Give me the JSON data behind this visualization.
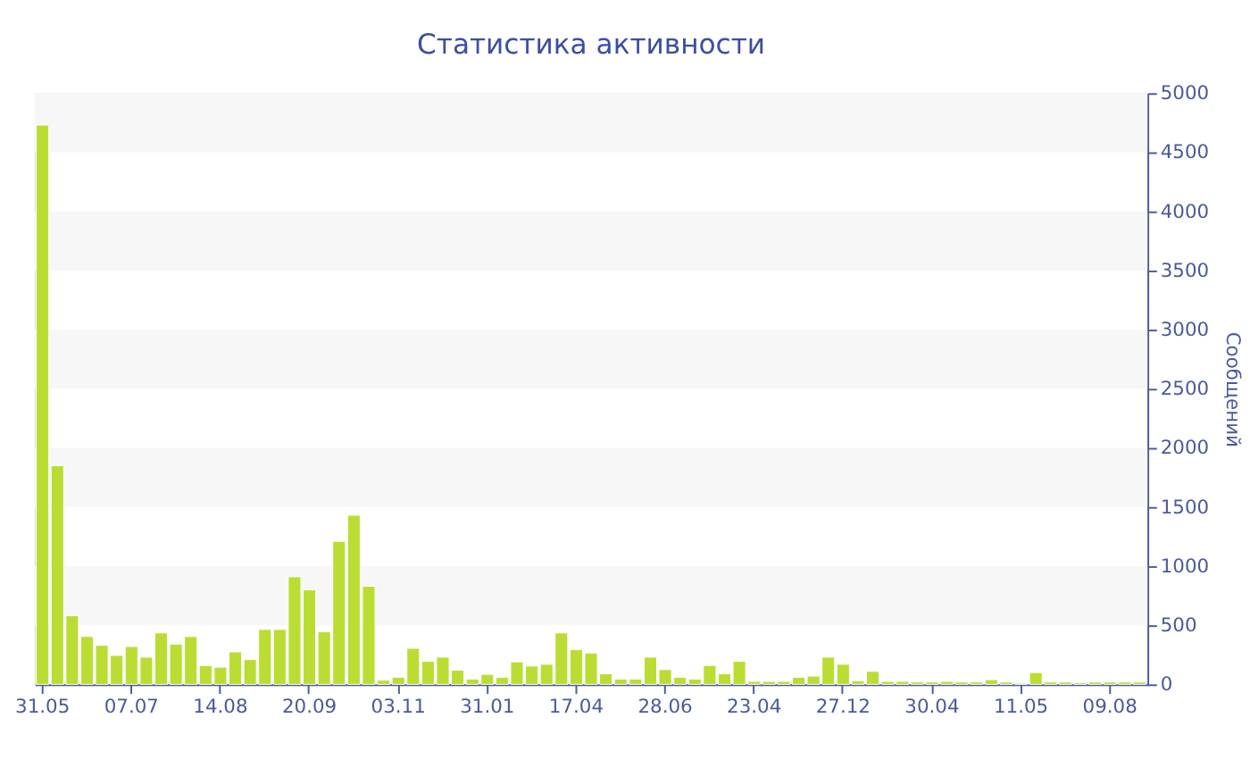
{
  "chart_data": {
    "type": "bar",
    "title": "Статистика активности",
    "ylabel": "Сообщений",
    "categories": [
      "31.05",
      null,
      null,
      null,
      null,
      null,
      "07.07",
      null,
      null,
      null,
      null,
      null,
      "14.08",
      null,
      null,
      null,
      null,
      null,
      "20.09",
      null,
      null,
      null,
      null,
      null,
      "03.11",
      null,
      null,
      null,
      null,
      null,
      "31.01",
      null,
      null,
      null,
      null,
      null,
      "17.04",
      null,
      null,
      null,
      null,
      null,
      "28.06",
      null,
      null,
      null,
      null,
      null,
      "23.04",
      null,
      null,
      null,
      null,
      null,
      "27.12",
      null,
      null,
      null,
      null,
      null,
      "30.04",
      null,
      null,
      null,
      null,
      null,
      "11.05",
      null,
      null,
      null,
      null,
      null,
      "09.08",
      null,
      null
    ],
    "values": [
      4730,
      1850,
      580,
      405,
      330,
      245,
      320,
      230,
      435,
      340,
      405,
      160,
      145,
      275,
      210,
      465,
      465,
      910,
      800,
      445,
      1210,
      1430,
      830,
      35,
      60,
      305,
      195,
      230,
      120,
      45,
      85,
      60,
      190,
      155,
      170,
      435,
      295,
      265,
      90,
      45,
      45,
      230,
      125,
      60,
      45,
      160,
      90,
      195,
      25,
      25,
      25,
      60,
      70,
      230,
      170,
      30,
      110,
      25,
      25,
      20,
      20,
      25,
      20,
      20,
      40,
      20,
      10,
      100,
      20,
      20,
      15,
      20,
      20,
      20,
      20
    ],
    "color": "#bbdd33",
    "ylim": [
      0,
      5000
    ],
    "yticks": [
      0,
      500,
      1000,
      1500,
      2000,
      2500,
      3000,
      3500,
      4000,
      4500,
      5000
    ],
    "bands": [
      {
        "axis": "y",
        "from": 500,
        "to": 1000,
        "color": "#f7f7f7"
      },
      {
        "axis": "y",
        "from": 1500,
        "to": 2000,
        "color": "#f7f7f7"
      },
      {
        "axis": "y",
        "from": 2500,
        "to": 3000,
        "color": "#f7f7f7"
      },
      {
        "axis": "y",
        "from": 3500,
        "to": 4000,
        "color": "#f7f7f7"
      },
      {
        "axis": "y",
        "from": 4500,
        "to": 5000,
        "color": "#f7f7f7"
      }
    ],
    "grid": false
  }
}
